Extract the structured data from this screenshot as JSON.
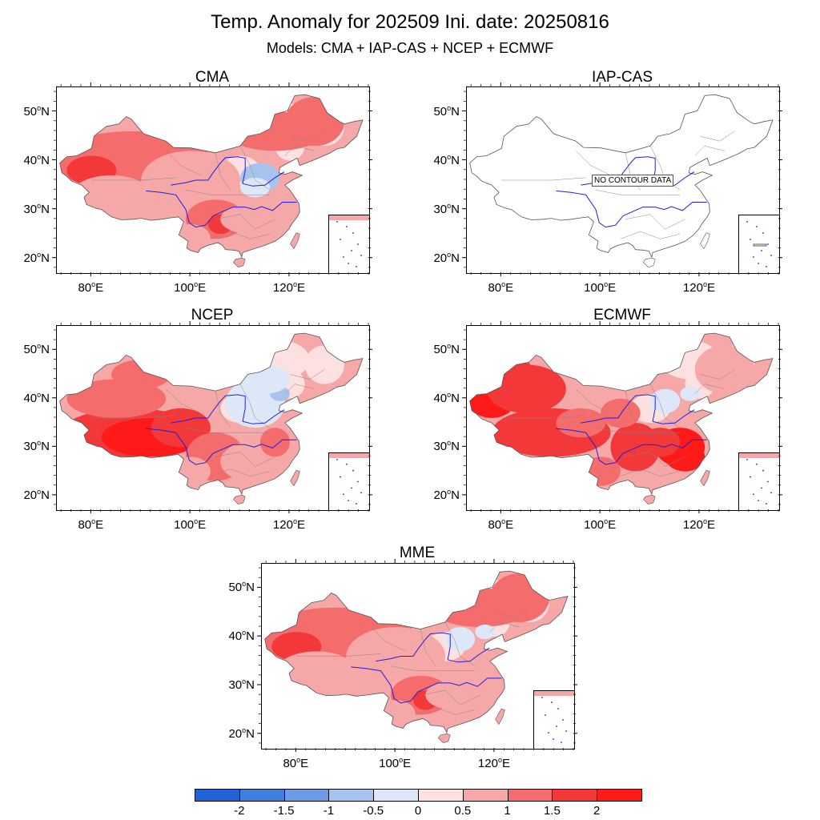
{
  "title": "Temp. Anomaly for 202509 Ini. date: 20250816",
  "subtitle": "Models: CMA + IAP-CAS + NCEP + ECMWF",
  "panels": [
    {
      "name": "CMA",
      "lat_ticks": [
        "50°N",
        "40°N",
        "30°N",
        "20°N"
      ],
      "lon_ticks": [
        "80°E",
        "100°E",
        "120°E"
      ],
      "has_data": true,
      "intensity": "moderate-warm",
      "cool_region": "north-china-plain"
    },
    {
      "name": "IAP-CAS",
      "lat_ticks": [
        "50°N",
        "40°N",
        "30°N",
        "20°N"
      ],
      "lon_ticks": [
        "80°E",
        "100°E",
        "120°E"
      ],
      "has_data": false,
      "no_data_text": "NO CONTOUR DATA"
    },
    {
      "name": "NCEP",
      "lat_ticks": [
        "50°N",
        "40°N",
        "30°N",
        "20°N"
      ],
      "lon_ticks": [
        "80°E",
        "100°E",
        "120°E"
      ],
      "has_data": true,
      "intensity": "strong-warm-tibet",
      "cool_region": "north-china"
    },
    {
      "name": "ECMWF",
      "lat_ticks": [
        "50°N",
        "40°N",
        "30°N",
        "20°N"
      ],
      "lon_ticks": [
        "80°E",
        "100°E",
        "120°E"
      ],
      "has_data": true,
      "intensity": "strong-warm-widespread",
      "cool_region": "north-china-small"
    },
    {
      "name": "MME",
      "lat_ticks": [
        "50°N",
        "40°N",
        "30°N",
        "20°N"
      ],
      "lon_ticks": [
        "80°E",
        "100°E",
        "120°E"
      ],
      "has_data": true,
      "intensity": "moderate-warm",
      "cool_region": "north-china-small"
    }
  ],
  "colorbar": {
    "labels": [
      "-2",
      "-1.5",
      "-1",
      "-0.5",
      "0",
      "0.5",
      "1",
      "1.5",
      "2"
    ],
    "colors": [
      "#1f63d4",
      "#3f7fdd",
      "#6d9be6",
      "#a9c3ef",
      "#dde7f8",
      "#fde0e0",
      "#f6a7a7",
      "#f46c6c",
      "#f23838",
      "#ff1a1a"
    ]
  },
  "map_colors": {
    "border": "#555555",
    "river": "#2020dd",
    "ocean": "#ffffff"
  }
}
